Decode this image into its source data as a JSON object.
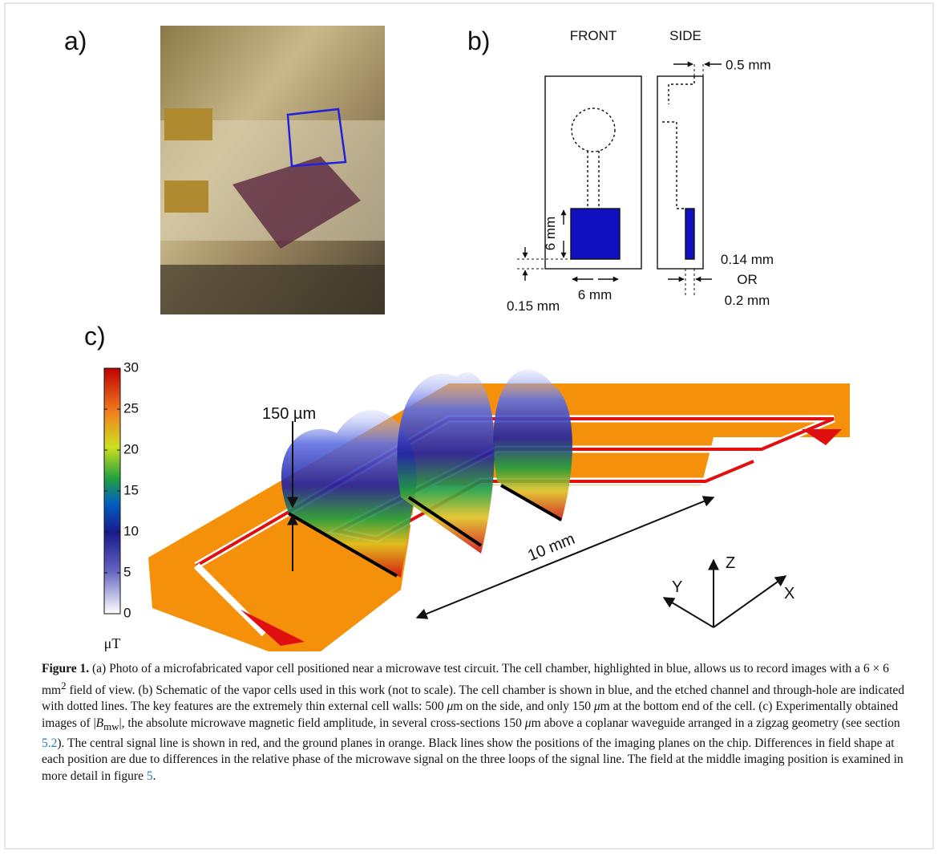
{
  "panels": {
    "a": {
      "label": "a)"
    },
    "b": {
      "label": "b)",
      "front": "FRONT",
      "side": "SIDE",
      "wall_side": "0.5 mm",
      "height": "6 mm",
      "width": "6 mm",
      "wall_bottom_front": "0.15 mm",
      "wall_bottom_side_1": "0.14 mm",
      "or": "OR",
      "wall_bottom_side_2": "0.2 mm"
    },
    "c": {
      "label": "c)",
      "colorbar": {
        "range": [
          0,
          30
        ],
        "ticks": [
          0,
          5,
          10,
          15,
          20,
          25,
          30
        ],
        "unit": "μT"
      },
      "height_annotation": "150 µm",
      "length_annotation": "10 mm",
      "axis_z": "Z",
      "axis_y": "Y",
      "axis_x": "X"
    }
  },
  "caption": {
    "label": "Figure 1.",
    "segments": [
      "(a) Photo of a microfabricated vapor cell positioned near a microwave test circuit. The cell chamber, highlighted in blue, allows us to record images with a 6 × 6 mm",
      "2",
      " field of view. (b) Schematic of the vapor cells used in this work (not to scale). The cell chamber is shown in blue, and the etched channel and through-hole are indicated with dotted lines. The key features are the extremely thin external cell walls: 500 ",
      "μ",
      "m on the side, and only 150 ",
      "μ",
      "m at the bottom end of the cell. (c) Experimentally obtained images of |",
      "B",
      "mw",
      "|, the absolute microwave magnetic field amplitude, in several cross-sections 150 ",
      "μ",
      "m above a coplanar waveguide arranged in a zigzag geometry (see section ",
      "5.2",
      "). The central signal line is shown in red, and the ground planes in orange. Black lines show the positions of the imaging planes on the chip. Differences in field shape at each position are due to differences in the relative phase of the microwave signal on the three loops of the signal line. The field at the middle imaging position is examined in more detail in figure ",
      "5",
      "."
    ]
  }
}
